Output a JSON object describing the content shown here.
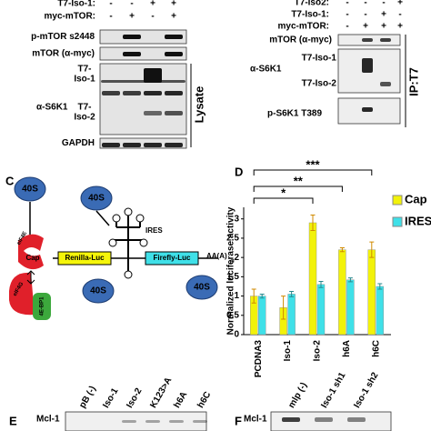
{
  "panel_a": {
    "rows": [
      {
        "label": "T7-Iso-1:",
        "marks": [
          "-",
          "-",
          "+",
          "+"
        ]
      },
      {
        "label": "myc-mTOR:",
        "marks": [
          "-",
          "+",
          "-",
          "+"
        ]
      }
    ],
    "blots": [
      "p-mTOR s2448",
      "mTOR (α-myc)",
      "α-S6K1",
      "GAPDH"
    ],
    "band_labels": [
      [
        "T7-",
        "Iso-1"
      ],
      [
        "T7-",
        "Iso-2"
      ]
    ],
    "side_label": "Lysate"
  },
  "panel_b": {
    "rows": [
      {
        "label": "T7-Iso2:",
        "marks": [
          "-",
          "-",
          "-",
          "+"
        ]
      },
      {
        "label": "T7-Iso-1:",
        "marks": [
          "-",
          "-",
          "+",
          "-"
        ]
      },
      {
        "label": "myc-mTOR:",
        "marks": [
          "-",
          "+",
          "+",
          "+"
        ]
      }
    ],
    "blots": [
      "mTOR (α-myc)",
      "α-S6K1",
      "p-S6K1 T389"
    ],
    "band_labels": [
      "T7-Iso-1",
      "T7-Iso-2"
    ],
    "side_label": "IP:T7"
  },
  "panel_c": {
    "letter": "C",
    "ribosome": "40S",
    "ires": "IRES",
    "cap": "Cap",
    "renilla": "Renilla-Luc",
    "firefly": "Firefly-Luc",
    "polya": "AA(A)",
    "polya_sub": "n",
    "eif4e": "eIF4E",
    "eif4g": "eIF4G",
    "bp1": "4E-BP1"
  },
  "chart_data": {
    "type": "bar",
    "letter": "D",
    "y_label": "Normalized luciferase activity",
    "categories": [
      "PCDNA3",
      "Iso-1",
      "Iso-2",
      "h6A",
      "h6C"
    ],
    "series": [
      {
        "name": "Cap",
        "color": "#f2f20a",
        "values": [
          1.0,
          0.7,
          2.9,
          2.2,
          2.2
        ],
        "errors": [
          0.18,
          0.3,
          0.2,
          0.05,
          0.2
        ]
      },
      {
        "name": "IRES",
        "color": "#3fe0e8",
        "values": [
          1.0,
          1.05,
          1.3,
          1.42,
          1.25
        ],
        "errors": [
          0.05,
          0.07,
          0.08,
          0.05,
          0.07
        ]
      }
    ],
    "ylim": [
      0,
      3.3
    ],
    "yticks": [
      0,
      0.5,
      1,
      1.5,
      2,
      2.5,
      3
    ],
    "annotations": [
      "*",
      "**",
      "***"
    ]
  },
  "panel_e": {
    "letter": "E",
    "blot": "Mcl-1",
    "lanes": [
      "pB (-)",
      "Iso-1",
      "Iso-2",
      "K123>A",
      "h6A",
      "h6C"
    ]
  },
  "panel_f": {
    "letter": "F",
    "blot": "Mcl-1",
    "lanes": [
      "mlp (-)",
      "Iso-1 sh1",
      "Iso-1 sh2"
    ]
  }
}
